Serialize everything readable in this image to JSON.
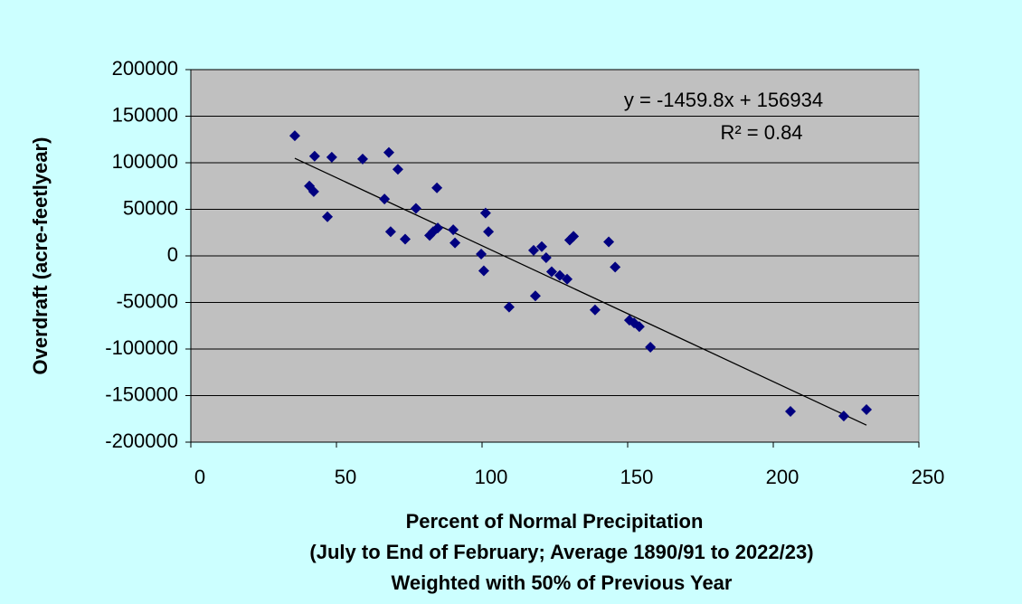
{
  "chart_data": {
    "type": "scatter",
    "x_label": [
      "Percent of Normal Precipitation",
      "(July to End of February; Average 1890/91 to 2022/23)",
      "Weighted with 50% of Previous Year"
    ],
    "y_label": "Overdraft (acre-feetlyear)",
    "series": [
      {
        "name": "Overdraft",
        "color": "#000080",
        "x": [
          35.7,
          40.7,
          42.2,
          42.5,
          46.9,
          48.4,
          59.0,
          68.0,
          66.5,
          68.6,
          71.1,
          73.6,
          77.3,
          84.5,
          82.0,
          83.2,
          84.8,
          90.1,
          90.7,
          99.7,
          100.6,
          101.2,
          102.2,
          109.3,
          117.7,
          118.3,
          120.5,
          122.0,
          123.9,
          126.7,
          129.2,
          130.1,
          131.4,
          138.8,
          143.5,
          145.7,
          150.6,
          152.2,
          154.0,
          157.8,
          205.9,
          224.2,
          232.0
        ],
        "values": [
          129000,
          75000,
          69000,
          107000,
          42000,
          106000,
          104000,
          111000,
          61000,
          26000,
          93000,
          18000,
          51000,
          73000,
          22000,
          26000,
          30000,
          28000,
          14000,
          2000,
          -16000,
          46000,
          26000,
          -55000,
          6000,
          -43000,
          10000,
          -2000,
          -17000,
          -21000,
          -25000,
          17000,
          21000,
          -58000,
          15000,
          -12000,
          -69000,
          -72000,
          -76000,
          -98000,
          -167000,
          -172000,
          -165000
        ]
      }
    ],
    "trendline": {
      "slope": -1459.8,
      "intercept": 156934,
      "equation": "y = -1459.8x + 156934",
      "r2": "R² = 0.84",
      "color": "#000000"
    },
    "xlim": [
      0,
      250
    ],
    "xticks": [
      0,
      50,
      100,
      150,
      200,
      250
    ],
    "ylim": [
      -200000,
      200000
    ],
    "yticks": [
      -200000,
      -150000,
      -100000,
      -50000,
      0,
      50000,
      100000,
      150000,
      200000
    ],
    "grid": true
  }
}
